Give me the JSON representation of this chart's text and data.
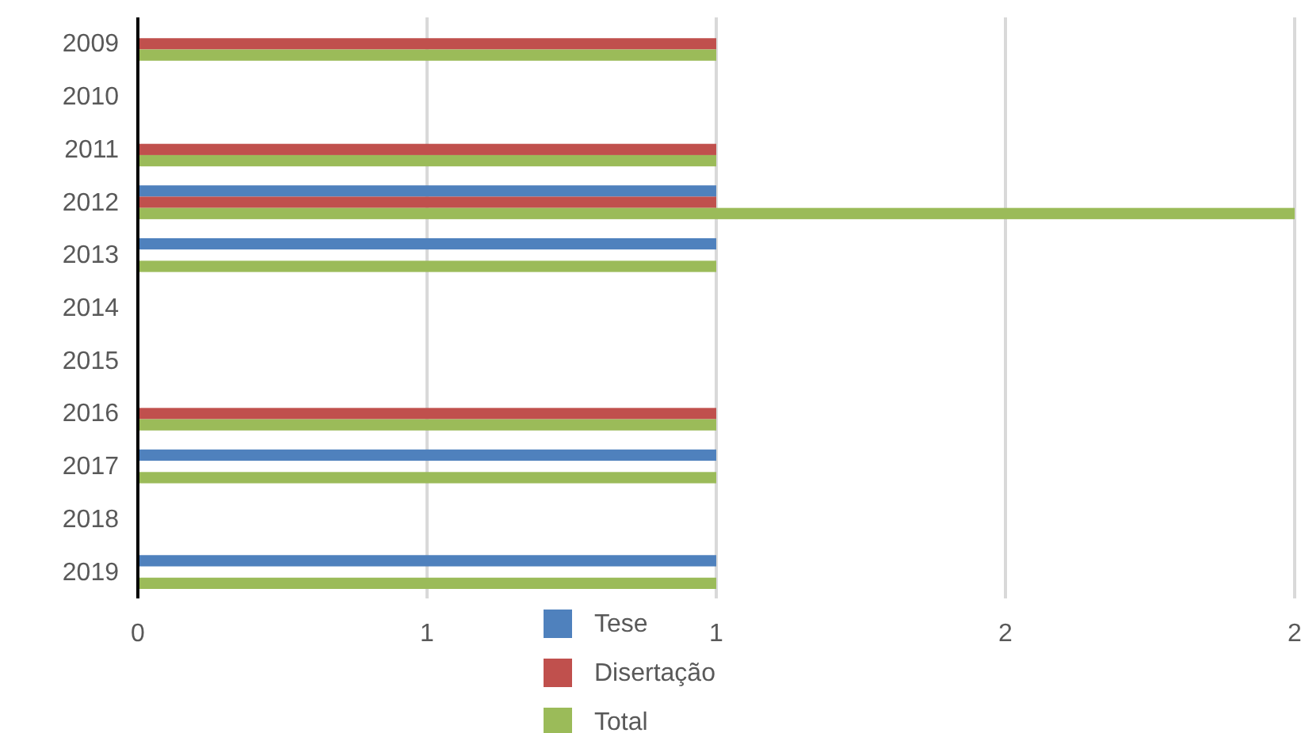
{
  "chart_data": {
    "type": "bar",
    "orientation": "horizontal",
    "categories": [
      "2009",
      "2010",
      "2011",
      "2012",
      "2013",
      "2014",
      "2015",
      "2016",
      "2017",
      "2018",
      "2019"
    ],
    "series": [
      {
        "name": "Tese",
        "color": "#4f81bd",
        "values": [
          0,
          0,
          0,
          1,
          1,
          0,
          0,
          0,
          1,
          0,
          1
        ]
      },
      {
        "name": "Disertação",
        "color": "#c0504d",
        "values": [
          1,
          0,
          1,
          1,
          0,
          0,
          0,
          1,
          0,
          0,
          0
        ]
      },
      {
        "name": "Total",
        "color": "#9bbb59",
        "values": [
          1,
          0,
          1,
          2,
          1,
          0,
          0,
          1,
          1,
          0,
          1
        ]
      }
    ],
    "xlim": [
      0,
      2
    ],
    "xticks": [
      0,
      {
        "value": 0.5,
        "label": "1"
      },
      1,
      {
        "value": 1.5,
        "label": "2"
      },
      2
    ],
    "grid": "x",
    "legend": "bottom"
  }
}
